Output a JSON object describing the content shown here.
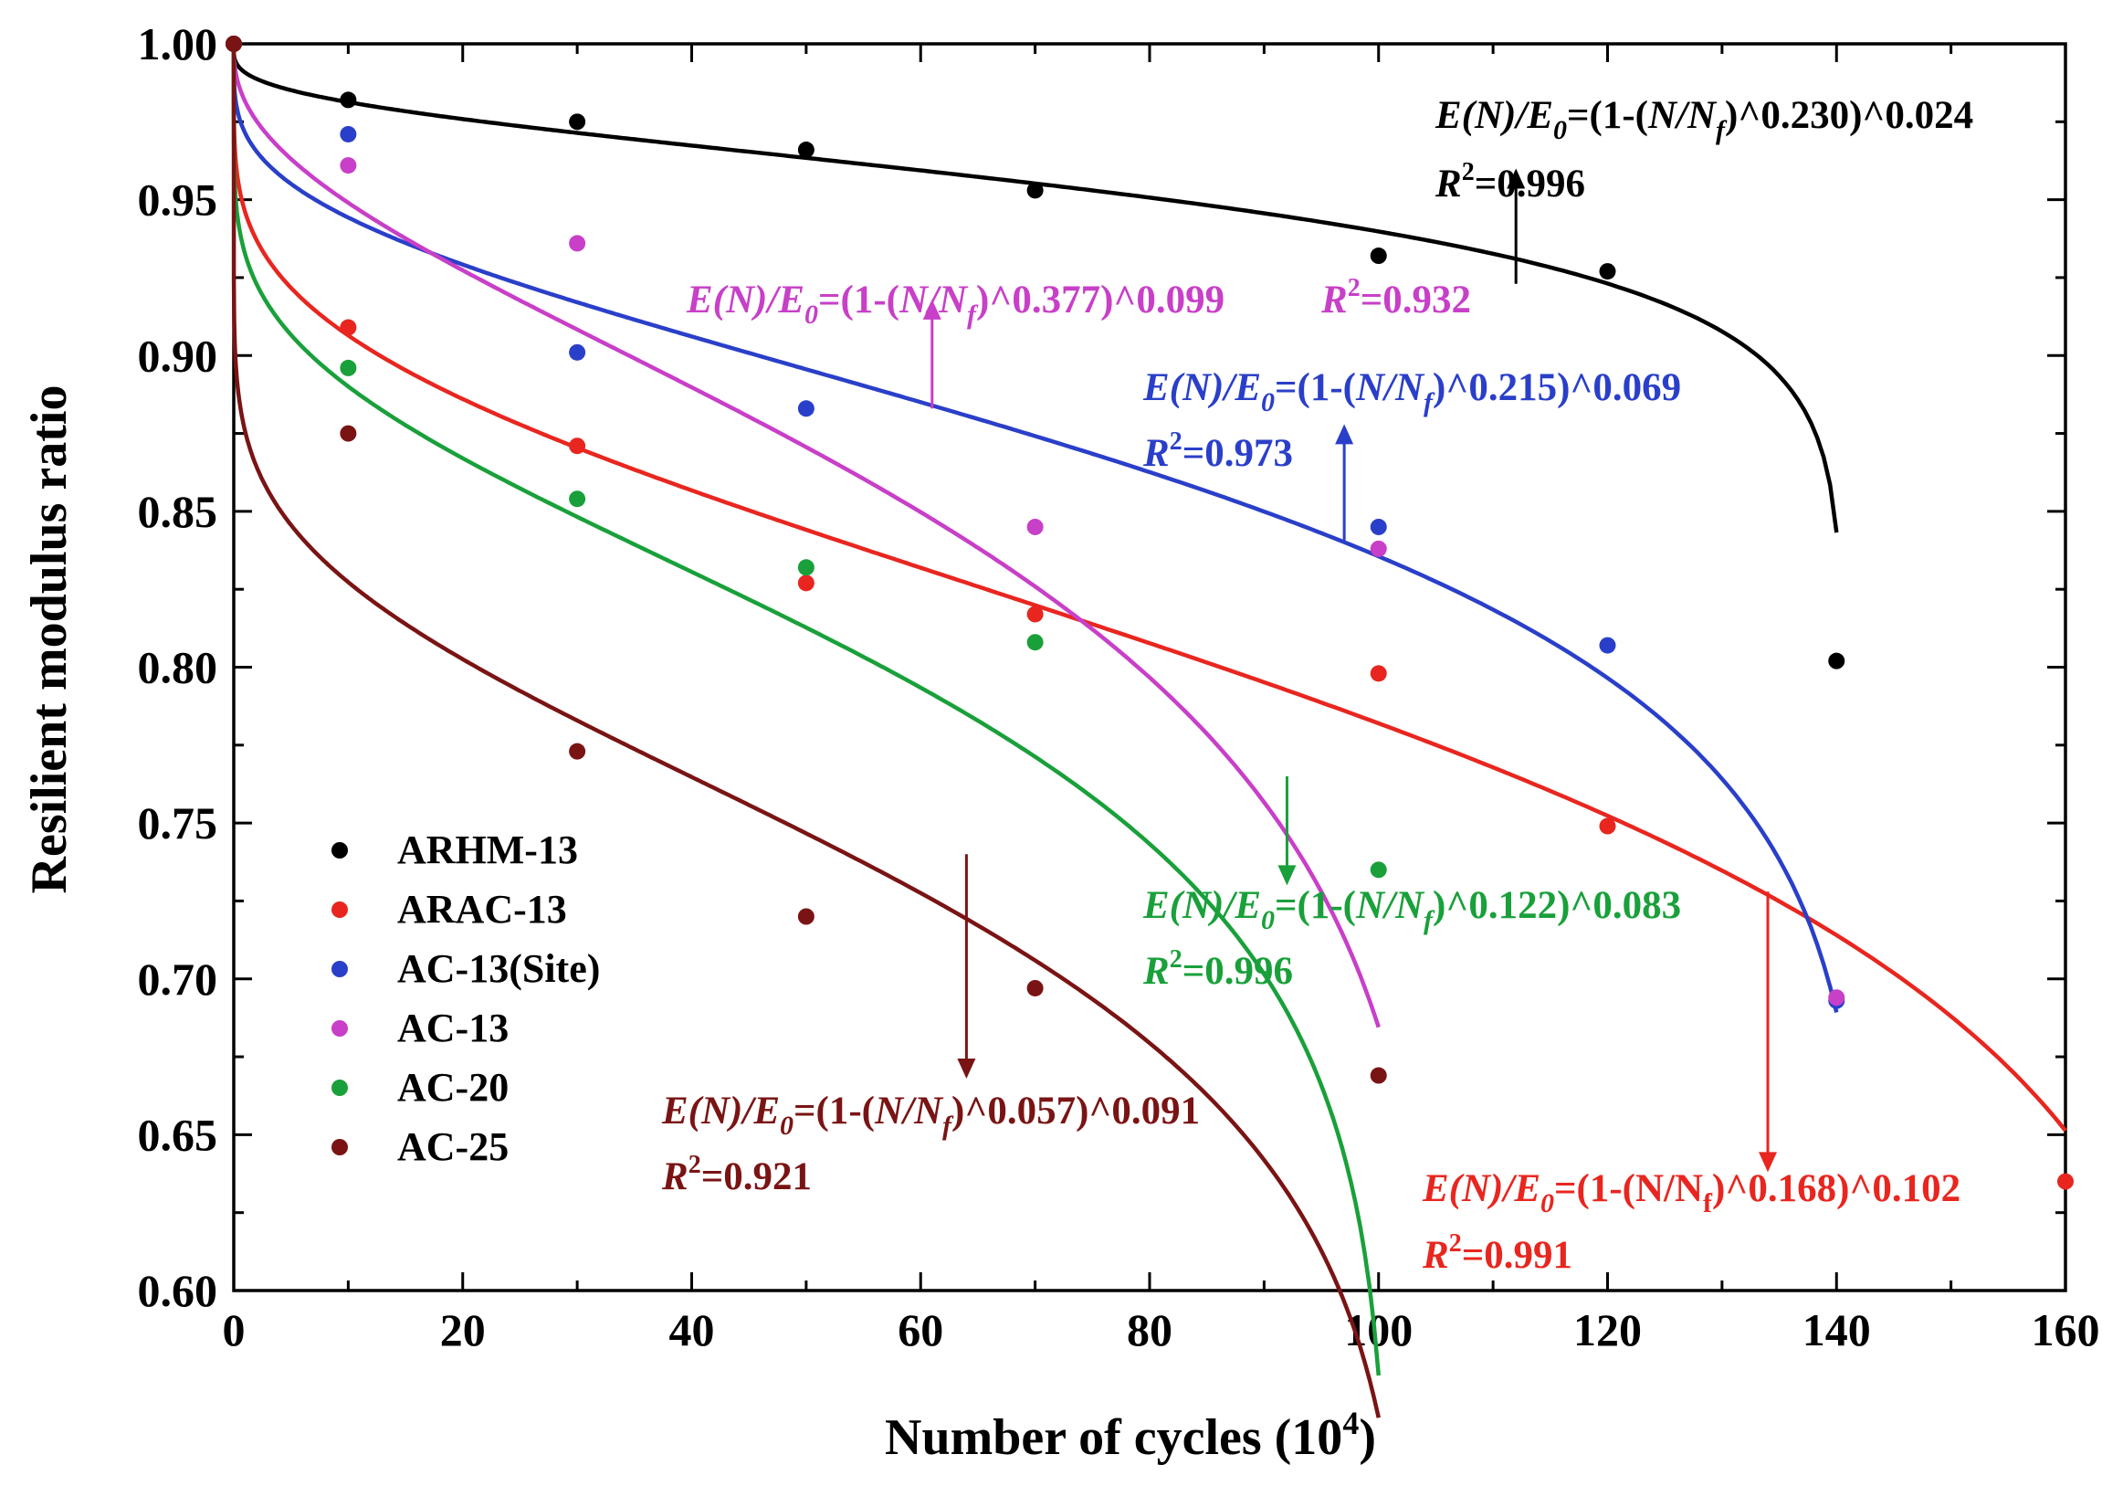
{
  "chart_data": {
    "type": "scatter",
    "title": "",
    "xlabel": "Number of cycles (10",
    "xlabel_sup": "4",
    "xlabel_close": ")",
    "ylabel": "Resilient modulus ratio",
    "xlim": [
      0,
      160
    ],
    "ylim": [
      0.6,
      1.0
    ],
    "xticks": [
      "0",
      "20",
      "40",
      "60",
      "80",
      "100",
      "120",
      "140",
      "160"
    ],
    "yticks": [
      "0.60",
      "0.65",
      "0.70",
      "0.75",
      "0.80",
      "0.85",
      "0.90",
      "0.95",
      "1.00"
    ],
    "legend_position": "bottom-left",
    "series": [
      {
        "name": "ARHM-13",
        "color": "#000000",
        "x": [
          0,
          10,
          30,
          50,
          70,
          100,
          120,
          140
        ],
        "y": [
          1.0,
          0.982,
          0.975,
          0.966,
          0.953,
          0.932,
          0.927,
          0.802
        ],
        "fit": {
          "Nf": 140.5,
          "a": 0.23,
          "b": 0.024,
          "xmax": 140
        },
        "equation": {
          "exp1": "0.230",
          "exp2": "0.024",
          "nf_italic": true,
          "r2": "0.996"
        }
      },
      {
        "name": "ARAC-13",
        "color": "#e8261f",
        "x": [
          0,
          10,
          30,
          50,
          70,
          100,
          120,
          160
        ],
        "y": [
          1.0,
          0.909,
          0.871,
          0.827,
          0.817,
          0.798,
          0.749,
          0.635
        ],
        "fit": {
          "Nf": 175,
          "a": 0.168,
          "b": 0.102,
          "xmax": 160
        },
        "equation": {
          "exp1": "0.168",
          "exp2": "0.102",
          "nf_italic": false,
          "r2": "0.991"
        }
      },
      {
        "name": "AC-13(Site)",
        "color": "#2a3fc9",
        "x": [
          0,
          10,
          30,
          50,
          100,
          120,
          140
        ],
        "y": [
          1.0,
          0.971,
          0.901,
          0.883,
          0.845,
          0.807,
          0.693
        ],
        "fit": {
          "Nf": 143,
          "a": 0.215,
          "b": 0.069,
          "xmax": 140
        },
        "equation": {
          "exp1": "0.215",
          "exp2": "0.069",
          "nf_italic": true,
          "r2": "0.973"
        }
      },
      {
        "name": "AC-13",
        "color": "#c83fc8",
        "x": [
          0,
          10,
          30,
          70,
          100,
          140
        ],
        "y": [
          1.0,
          0.961,
          0.936,
          0.845,
          0.838,
          0.694
        ],
        "fit": {
          "Nf": 106,
          "a": 0.377,
          "b": 0.099,
          "xmax": 100
        },
        "equation": {
          "exp1": "0.377",
          "exp2": "0.099",
          "nf_italic": true,
          "r2": "0.932"
        }
      },
      {
        "name": "AC-20",
        "color": "#19a03a",
        "x": [
          0,
          10,
          30,
          50,
          70,
          100
        ],
        "y": [
          1.0,
          0.896,
          0.854,
          0.832,
          0.808,
          0.735
        ],
        "fit": {
          "Nf": 101,
          "a": 0.122,
          "b": 0.083,
          "xmax": 100
        },
        "equation": {
          "exp1": "0.122",
          "exp2": "0.083",
          "nf_italic": true,
          "r2": "0.996"
        }
      },
      {
        "name": "AC-25",
        "color": "#7a1414",
        "x": [
          0,
          10,
          30,
          50,
          70,
          100
        ],
        "y": [
          1.0,
          0.875,
          0.773,
          0.72,
          0.697,
          0.669
        ],
        "fit": {
          "Nf": 103,
          "a": 0.057,
          "b": 0.091,
          "xmax": 100
        },
        "equation": {
          "exp1": "0.057",
          "exp2": "0.091",
          "nf_italic": true,
          "r2": "0.921"
        }
      }
    ]
  }
}
